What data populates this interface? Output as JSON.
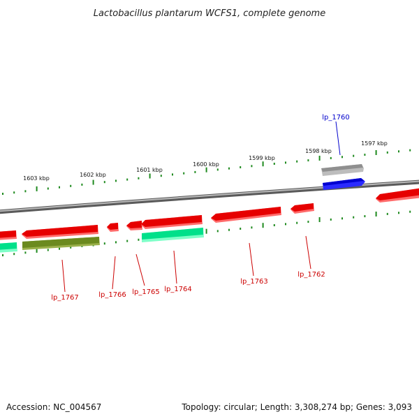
{
  "title": "Lactobacillus plantarum WCFS1, complete genome",
  "footer": {
    "accession": "Accession: NC_004567",
    "summary": "Topology: circular; Length: 3,308,274 bp; Genes: 3,093"
  },
  "scale_labels": [
    "1603 kbp",
    "1602 kbp",
    "1601 kbp",
    "1600 kbp",
    "1599 kbp",
    "1598 kbp",
    "1597 kbp"
  ],
  "gene_labels": [
    {
      "text": "lp_1760",
      "color": "#0000cc"
    },
    {
      "text": "lp_1767",
      "color": "#cc0000"
    },
    {
      "text": "lp_1766",
      "color": "#cc0000"
    },
    {
      "text": "lp_1765",
      "color": "#cc0000"
    },
    {
      "text": "lp_1764",
      "color": "#cc0000"
    },
    {
      "text": "lp_1763",
      "color": "#cc0000"
    },
    {
      "text": "lp_1762",
      "color": "#cc0000"
    }
  ],
  "colors": {
    "backbone": "#8a8a8a",
    "scale_ticks": "#1f8a1f",
    "gene_forward_red": "#e60000",
    "gene_reverse_red": "#e60000",
    "gene_blue": "#1010ee",
    "gene_gray": "#a8a8a8",
    "gene_green_cyan": "#00e08a",
    "gene_olive": "#6b8a1f"
  }
}
